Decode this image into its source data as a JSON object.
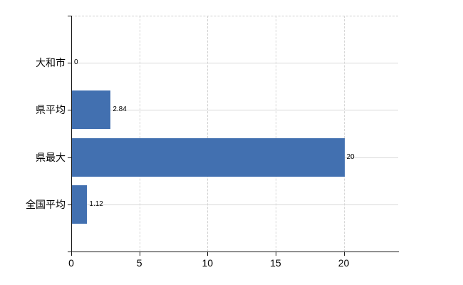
{
  "chart_data": {
    "type": "bar",
    "orientation": "horizontal",
    "title": "",
    "xlabel": "",
    "ylabel": "",
    "categories": [
      "大和市",
      "県平均",
      "県最大",
      "全国平均"
    ],
    "values": [
      0,
      2.84,
      20,
      1.12
    ],
    "value_labels": [
      "0",
      "2.84",
      "20",
      "1.12"
    ],
    "x_ticks": [
      0,
      5,
      10,
      15,
      20
    ],
    "x_tick_labels": [
      "0",
      "5",
      "10",
      "15",
      "20"
    ],
    "xlim": [
      0,
      24
    ],
    "grid": "on",
    "legend": "none",
    "colors": {
      "bar": "#4270b0",
      "h_grid": "#d9d9d9",
      "v_grid": "#d4d4d4",
      "plot_top_border": "#cfcfcf",
      "axis": "#1a1a1a",
      "text": "#000000",
      "background": "#ffffff"
    }
  }
}
